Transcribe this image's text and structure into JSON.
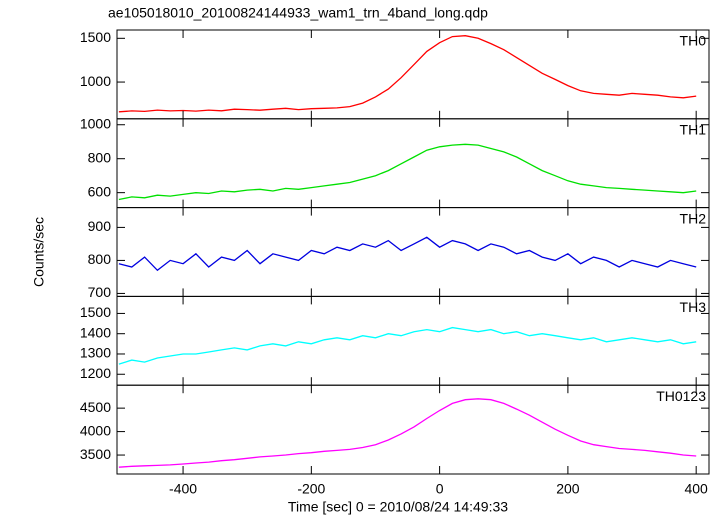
{
  "chart_data": [
    {
      "type": "line",
      "title": "ae105018010_20100824144933_wam1_trn_4band_long.qdp",
      "x": [
        -500,
        -480,
        -460,
        -440,
        -420,
        -400,
        -380,
        -360,
        -340,
        -320,
        -300,
        -280,
        -260,
        -240,
        -220,
        -200,
        -180,
        -160,
        -140,
        -120,
        -100,
        -80,
        -60,
        -40,
        -20,
        0,
        20,
        40,
        60,
        80,
        100,
        120,
        140,
        160,
        180,
        200,
        220,
        240,
        260,
        280,
        300,
        320,
        340,
        360,
        380,
        400
      ],
      "xlim": [
        -503,
        420
      ],
      "xticks": [
        -400,
        -200,
        0,
        200,
        400
      ],
      "ylim": [
        580,
        1595
      ],
      "yticks": [
        1000,
        1500
      ],
      "series": [
        {
          "name": "TH0",
          "color": "#ff0000",
          "values": [
            660,
            670,
            665,
            680,
            670,
            675,
            668,
            680,
            672,
            690,
            685,
            678,
            690,
            700,
            685,
            695,
            700,
            705,
            720,
            760,
            830,
            920,
            1050,
            1200,
            1350,
            1450,
            1520,
            1530,
            1500,
            1440,
            1370,
            1280,
            1190,
            1100,
            1030,
            960,
            900,
            870,
            860,
            850,
            870,
            860,
            850,
            830,
            820,
            840
          ]
        }
      ]
    },
    {
      "type": "line",
      "x": [
        -500,
        -480,
        -460,
        -440,
        -420,
        -400,
        -380,
        -360,
        -340,
        -320,
        -300,
        -280,
        -260,
        -240,
        -220,
        -200,
        -180,
        -160,
        -140,
        -120,
        -100,
        -80,
        -60,
        -40,
        -20,
        0,
        20,
        40,
        60,
        80,
        100,
        120,
        140,
        160,
        180,
        200,
        220,
        240,
        260,
        280,
        300,
        320,
        340,
        360,
        380,
        400
      ],
      "xlim": [
        -503,
        420
      ],
      "xticks": [
        -400,
        -200,
        0,
        200,
        400
      ],
      "ylim": [
        512,
        1035
      ],
      "yticks": [
        600,
        800,
        1000
      ],
      "series": [
        {
          "name": "TH1",
          "color": "#00e000",
          "values": [
            560,
            575,
            570,
            585,
            580,
            590,
            600,
            595,
            610,
            605,
            615,
            620,
            610,
            625,
            620,
            630,
            640,
            650,
            660,
            680,
            700,
            730,
            770,
            810,
            850,
            870,
            880,
            885,
            880,
            860,
            840,
            810,
            770,
            730,
            700,
            670,
            650,
            640,
            630,
            625,
            620,
            615,
            610,
            605,
            600,
            610
          ]
        }
      ]
    },
    {
      "type": "line",
      "ylabel": "Counts/sec",
      "x": [
        -500,
        -480,
        -460,
        -440,
        -420,
        -400,
        -380,
        -360,
        -340,
        -320,
        -300,
        -280,
        -260,
        -240,
        -220,
        -200,
        -180,
        -160,
        -140,
        -120,
        -100,
        -80,
        -60,
        -40,
        -20,
        0,
        20,
        40,
        60,
        80,
        100,
        120,
        140,
        160,
        180,
        200,
        220,
        240,
        260,
        280,
        300,
        320,
        340,
        360,
        380,
        400
      ],
      "xlim": [
        -503,
        420
      ],
      "xticks": [
        -400,
        -200,
        0,
        200,
        400
      ],
      "ylim": [
        691,
        960
      ],
      "yticks": [
        700,
        800,
        900
      ],
      "series": [
        {
          "name": "TH2",
          "color": "#0000e0",
          "values": [
            790,
            780,
            810,
            770,
            800,
            790,
            820,
            780,
            810,
            800,
            830,
            790,
            820,
            810,
            800,
            830,
            820,
            840,
            830,
            850,
            840,
            860,
            830,
            850,
            870,
            840,
            860,
            850,
            830,
            850,
            840,
            820,
            830,
            810,
            800,
            820,
            790,
            810,
            800,
            780,
            800,
            790,
            780,
            800,
            790,
            780
          ]
        }
      ]
    },
    {
      "type": "line",
      "x": [
        -500,
        -480,
        -460,
        -440,
        -420,
        -400,
        -380,
        -360,
        -340,
        -320,
        -300,
        -280,
        -260,
        -240,
        -220,
        -200,
        -180,
        -160,
        -140,
        -120,
        -100,
        -80,
        -60,
        -40,
        -20,
        0,
        20,
        40,
        60,
        80,
        100,
        120,
        140,
        160,
        180,
        200,
        220,
        240,
        260,
        280,
        300,
        320,
        340,
        360,
        380,
        400
      ],
      "xlim": [
        -503,
        420
      ],
      "xticks": [
        -400,
        -200,
        0,
        200,
        400
      ],
      "ylim": [
        1146,
        1584
      ],
      "yticks": [
        1200,
        1300,
        1400,
        1500
      ],
      "series": [
        {
          "name": "TH3",
          "color": "#00ffff",
          "values": [
            1250,
            1270,
            1260,
            1280,
            1290,
            1300,
            1300,
            1310,
            1320,
            1330,
            1320,
            1340,
            1350,
            1340,
            1360,
            1350,
            1370,
            1380,
            1370,
            1390,
            1380,
            1400,
            1390,
            1410,
            1420,
            1410,
            1430,
            1420,
            1410,
            1420,
            1400,
            1410,
            1390,
            1400,
            1390,
            1380,
            1370,
            1380,
            1360,
            1370,
            1380,
            1370,
            1360,
            1370,
            1350,
            1360
          ]
        }
      ]
    },
    {
      "type": "line",
      "xlabel": "Time [sec] 0 = 2010/08/24 14:49:33",
      "x": [
        -500,
        -480,
        -460,
        -440,
        -420,
        -400,
        -380,
        -360,
        -340,
        -320,
        -300,
        -280,
        -260,
        -240,
        -220,
        -200,
        -180,
        -160,
        -140,
        -120,
        -100,
        -80,
        -60,
        -40,
        -20,
        0,
        20,
        40,
        60,
        80,
        100,
        120,
        140,
        160,
        180,
        200,
        220,
        240,
        260,
        280,
        300,
        320,
        340,
        360,
        380,
        400
      ],
      "xlim": [
        -503,
        420
      ],
      "xticks": [
        -400,
        -200,
        0,
        200,
        400
      ],
      "ylim": [
        3096,
        4989
      ],
      "yticks": [
        3500,
        4000,
        4500
      ],
      "series": [
        {
          "name": "TH0123",
          "color": "#ff00ff",
          "values": [
            3240,
            3260,
            3270,
            3280,
            3290,
            3310,
            3330,
            3350,
            3380,
            3400,
            3430,
            3460,
            3480,
            3500,
            3530,
            3550,
            3580,
            3600,
            3620,
            3660,
            3720,
            3820,
            3950,
            4100,
            4280,
            4450,
            4600,
            4680,
            4700,
            4680,
            4600,
            4480,
            4350,
            4200,
            4050,
            3920,
            3800,
            3720,
            3680,
            3640,
            3620,
            3600,
            3570,
            3540,
            3500,
            3480
          ]
        }
      ]
    }
  ]
}
